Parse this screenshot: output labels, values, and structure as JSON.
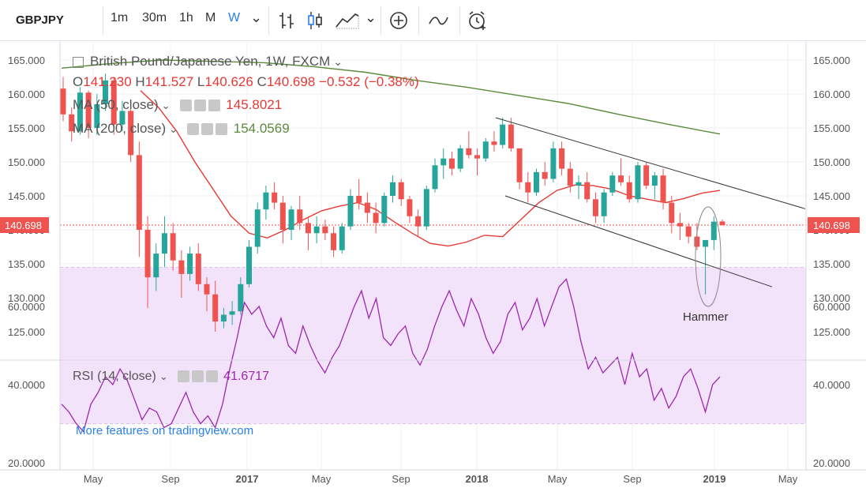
{
  "toolbar": {
    "symbol": "GBPJPY",
    "intervals": [
      "1m",
      "30m",
      "1h",
      "M",
      "W"
    ],
    "selected_interval": "W",
    "dropdown_caret": "⌄",
    "icons": [
      "bar-chart-icon",
      "candles-icon",
      "area-chart-icon",
      "dropdown-icon",
      "plus-circle-icon",
      "indicator-icon",
      "alarm-icon"
    ]
  },
  "legend": {
    "title": "British Pound/Japanese Yen, 1W, FXCM",
    "open_label": "O",
    "open": "141.230",
    "high_label": "H",
    "high": "141.527",
    "low_label": "L",
    "low": "140.626",
    "close_label": "C",
    "close": "140.698",
    "change": "−0.532 (−0.38%)",
    "ma50_label": "MA (50, close)",
    "ma50_value": "145.8021",
    "ma200_label": "MA (200, close)",
    "ma200_value": "154.0569"
  },
  "rsi_legend": {
    "label": "RSI (14, close)",
    "value": "41.6717"
  },
  "watermark": "More features on tradingview.com",
  "annotation": "Hammer",
  "price_tag": "140.698",
  "colors": {
    "up": "#26a69a",
    "down": "#ef5350",
    "ma50": "#e53935",
    "ma200": "#5b8a3a",
    "rsi": "#9c27b0",
    "rsi_band": "#f3e3fa",
    "accent": "#2a7ff0",
    "price_tag": "#ef5350"
  },
  "chart_data": [
    {
      "type": "candlestick",
      "title": "British Pound/Japanese Yen, 1W, FXCM",
      "y_ticks": [
        "125.000",
        "130.000",
        "135.000",
        "140.000",
        "145.000",
        "150.000",
        "155.000",
        "160.000",
        "165.000"
      ],
      "ylim": [
        121,
        168
      ],
      "x_ticks": [
        "May",
        "Sep",
        "2017",
        "May",
        "Sep",
        "2018",
        "May",
        "Sep",
        "2019",
        "May"
      ],
      "last_price": 140.698,
      "ohlc_approx": [
        [
          160.8,
          162.5,
          156.0,
          157.0
        ],
        [
          157.0,
          158.0,
          153.0,
          154.5
        ],
        [
          154.5,
          161.0,
          154.0,
          160.2
        ],
        [
          160.2,
          160.5,
          153.5,
          155.0
        ],
        [
          155.0,
          160.0,
          154.0,
          158.5
        ],
        [
          158.5,
          163.0,
          157.5,
          162.0
        ],
        [
          162.0,
          162.5,
          154.0,
          155.5
        ],
        [
          155.5,
          159.0,
          154.5,
          157.5
        ],
        [
          157.5,
          158.5,
          150.0,
          151.0
        ],
        [
          151.0,
          153.0,
          136.0,
          140.0
        ],
        [
          140.0,
          142.0,
          128.5,
          133.0
        ],
        [
          133.0,
          138.0,
          131.0,
          136.5
        ],
        [
          136.5,
          142.0,
          134.5,
          139.5
        ],
        [
          139.5,
          141.0,
          134.0,
          135.5
        ],
        [
          135.5,
          137.0,
          130.0,
          133.5
        ],
        [
          133.5,
          137.5,
          132.5,
          136.5
        ],
        [
          136.5,
          138.0,
          131.0,
          132.0
        ],
        [
          132.0,
          133.0,
          128.0,
          130.5
        ],
        [
          130.5,
          132.5,
          125.0,
          126.5
        ],
        [
          126.5,
          128.5,
          125.5,
          127.5
        ],
        [
          127.5,
          129.5,
          126.0,
          128.0
        ],
        [
          128.0,
          133.0,
          127.5,
          132.0
        ],
        [
          132.0,
          138.5,
          131.5,
          137.5
        ],
        [
          137.5,
          144.0,
          136.5,
          143.0
        ],
        [
          143.0,
          146.5,
          141.5,
          145.5
        ],
        [
          145.5,
          147.0,
          143.0,
          144.0
        ],
        [
          144.0,
          145.0,
          138.0,
          140.0
        ],
        [
          140.0,
          143.5,
          138.5,
          143.0
        ],
        [
          143.0,
          145.0,
          140.0,
          141.0
        ],
        [
          141.0,
          142.0,
          137.0,
          139.5
        ],
        [
          139.5,
          142.0,
          138.0,
          140.5
        ],
        [
          140.5,
          141.5,
          138.5,
          139.5
        ],
        [
          139.5,
          140.5,
          136.0,
          137.0
        ],
        [
          137.0,
          141.0,
          136.5,
          140.5
        ],
        [
          140.5,
          146.0,
          140.0,
          145.0
        ],
        [
          145.0,
          147.5,
          143.0,
          144.0
        ],
        [
          144.0,
          145.5,
          141.0,
          142.5
        ],
        [
          142.5,
          144.0,
          139.5,
          141.0
        ],
        [
          141.0,
          145.5,
          140.5,
          145.0
        ],
        [
          145.0,
          148.0,
          144.0,
          147.0
        ],
        [
          147.0,
          147.5,
          143.5,
          144.5
        ],
        [
          144.5,
          145.0,
          141.0,
          142.0
        ],
        [
          142.0,
          143.0,
          139.0,
          140.5
        ],
        [
          140.5,
          146.5,
          140.0,
          146.0
        ],
        [
          146.0,
          150.5,
          145.5,
          149.5
        ],
        [
          149.5,
          152.0,
          147.5,
          150.5
        ],
        [
          150.5,
          151.5,
          148.0,
          149.0
        ],
        [
          149.0,
          152.5,
          148.5,
          152.0
        ],
        [
          152.0,
          154.5,
          150.5,
          151.0
        ],
        [
          151.0,
          152.0,
          148.0,
          150.5
        ],
        [
          150.5,
          153.5,
          150.0,
          153.0
        ],
        [
          153.0,
          154.5,
          151.5,
          152.5
        ],
        [
          152.5,
          156.5,
          152.0,
          155.5
        ],
        [
          155.5,
          156.5,
          151.5,
          152.0
        ],
        [
          152.0,
          149.0,
          146.0,
          147.0
        ],
        [
          147.0,
          148.5,
          144.0,
          145.5
        ],
        [
          145.5,
          149.0,
          145.0,
          148.5
        ],
        [
          148.5,
          150.0,
          146.5,
          147.5
        ],
        [
          147.5,
          153.0,
          147.0,
          152.0
        ],
        [
          152.0,
          153.0,
          148.0,
          149.0
        ],
        [
          149.0,
          150.0,
          145.5,
          146.5
        ],
        [
          146.5,
          148.0,
          144.5,
          147.0
        ],
        [
          147.0,
          148.5,
          144.0,
          144.5
        ],
        [
          144.5,
          145.5,
          141.0,
          142.0
        ],
        [
          142.0,
          146.0,
          141.0,
          145.5
        ],
        [
          145.5,
          148.5,
          145.0,
          148.0
        ],
        [
          148.0,
          150.5,
          146.5,
          147.0
        ],
        [
          147.0,
          148.0,
          144.0,
          144.5
        ],
        [
          144.5,
          150.0,
          144.0,
          149.5
        ],
        [
          149.5,
          150.0,
          146.0,
          146.5
        ],
        [
          146.5,
          148.5,
          144.5,
          148.0
        ],
        [
          148.0,
          149.0,
          143.0,
          144.0
        ],
        [
          144.0,
          145.0,
          139.5,
          141.0
        ],
        [
          141.0,
          142.5,
          138.5,
          140.5
        ],
        [
          140.5,
          141.0,
          138.0,
          139.0
        ],
        [
          139.0,
          141.0,
          137.0,
          137.5
        ],
        [
          137.5,
          138.0,
          130.5,
          138.5
        ],
        [
          138.5,
          142.0,
          137.0,
          141.2
        ],
        [
          141.23,
          141.527,
          140.626,
          140.698
        ]
      ],
      "ma50_approx": [
        160.5,
        158.0,
        154.5,
        150.0,
        146.0,
        142.0,
        139.5,
        138.8,
        140.0,
        141.5,
        142.8,
        143.5,
        144.0,
        143.0,
        141.2,
        139.5,
        138.0,
        137.6,
        138.2,
        139.2,
        139.0,
        141.5,
        144.0,
        145.8,
        146.6,
        146.5,
        146.0,
        145.0,
        144.5,
        144.0,
        144.6,
        145.4,
        145.8
      ],
      "ma200_approx": [
        163.8,
        164.5,
        165.0,
        164.8,
        164.6,
        164.0,
        163.2,
        162.0,
        161.0,
        159.8,
        158.6,
        157.0,
        155.5,
        154.1
      ],
      "channel_upper": {
        "from_price": 156.5,
        "to_price": 144.5
      },
      "channel_lower": {
        "from_price": 145.0,
        "to_price": 133.0
      }
    },
    {
      "type": "line",
      "title": "RSI (14, close)",
      "y_ticks": [
        "20.0000",
        "40.0000",
        "60.0000"
      ],
      "ylim": [
        18,
        72
      ],
      "band": [
        30,
        70
      ],
      "values": [
        35,
        33,
        30,
        28,
        35,
        38,
        42,
        40,
        44,
        41,
        36,
        31,
        34,
        33,
        29,
        30,
        34,
        38,
        33,
        30,
        32,
        29,
        35,
        44,
        52,
        61,
        58,
        60,
        55,
        52,
        57,
        50,
        48,
        55,
        50,
        46,
        43,
        47,
        50,
        55,
        60,
        64,
        57,
        62,
        52,
        50,
        53,
        55,
        48,
        45,
        49,
        55,
        60,
        64,
        59,
        55,
        62,
        58,
        52,
        48,
        51,
        58,
        61,
        54,
        57,
        62,
        55,
        60,
        65,
        67,
        60,
        51,
        44,
        47,
        43,
        45,
        47,
        40,
        48,
        42,
        44,
        36,
        39,
        34,
        37,
        42,
        44,
        39,
        33,
        40,
        42
      ]
    }
  ]
}
